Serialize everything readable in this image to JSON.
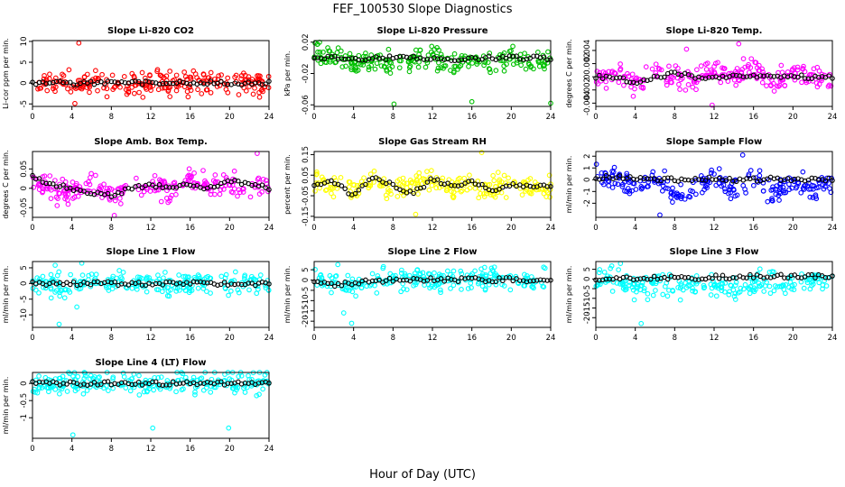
{
  "figure": {
    "title": "FEF_100530  Slope Diagnostics",
    "xlabel": "Hour of Day (UTC)"
  },
  "chart_data": [
    {
      "type": "scatter",
      "title": "Slope Li-820 CO2",
      "ylabel": "Li-cor ppm per min.",
      "xlim": [
        0,
        24
      ],
      "ylim": [
        -5.6,
        10.2
      ],
      "xticks": [
        0,
        4,
        8,
        12,
        16,
        20,
        24
      ],
      "yticks": [
        -5,
        0,
        5,
        10
      ],
      "color": "#ff0000",
      "series": [
        {
          "x": [
            0,
            2,
            4,
            6,
            8,
            10,
            12,
            14,
            16,
            18,
            20,
            22,
            24
          ],
          "y": [
            0.05,
            0.1,
            0.3,
            -0.6,
            0.2,
            -0.5,
            0.3,
            0.1,
            -0.1,
            0.0,
            0.1,
            0.1,
            0.0
          ]
        }
      ],
      "highlights": [
        {
          "x": 4.7,
          "y": 9.6
        },
        {
          "x": 4.3,
          "y": -4.9
        },
        {
          "x": 3.7,
          "y": 3.2
        },
        {
          "x": 11.2,
          "y": -3.4
        },
        {
          "x": 6.4,
          "y": 3.0
        }
      ],
      "overlay": [
        0.0,
        0.1,
        -0.1,
        0.0,
        0.0,
        0.1,
        0.0,
        0.0,
        0.0,
        0.0,
        0.0,
        0.0,
        0.0
      ]
    },
    {
      "type": "scatter",
      "title": "Slope Li-820 Pressure",
      "ylabel": "kPa per min.",
      "xlim": [
        0,
        24
      ],
      "ylim": [
        -0.062,
        0.022
      ],
      "xticks": [
        0,
        4,
        8,
        12,
        16,
        20,
        24
      ],
      "yticks": [
        0.02,
        -0.02,
        -0.06
      ],
      "color": "#00c000",
      "series": [
        {
          "x": [
            0,
            2,
            4,
            6,
            8,
            10,
            12,
            14,
            16,
            18,
            20,
            22,
            24
          ],
          "y": [
            0.005,
            0.002,
            -0.008,
            -0.005,
            -0.01,
            -0.004,
            0.002,
            -0.006,
            -0.002,
            -0.008,
            0.004,
            -0.006,
            -0.003
          ]
        }
      ],
      "highlights": [
        {
          "x": 8.1,
          "y": -0.059
        },
        {
          "x": 16.0,
          "y": -0.056
        },
        {
          "x": 24.0,
          "y": -0.058
        }
      ],
      "overlay": [
        0.0,
        0.0,
        -0.002,
        0.0,
        0.0,
        0.0,
        0.0,
        -0.002,
        0.0,
        0.0,
        0.0,
        0.0,
        0.0
      ]
    },
    {
      "type": "scatter",
      "title": "Slope Li-820 Temp.",
      "ylabel": "degrees C per min.",
      "xlim": [
        0,
        24
      ],
      "ylim": [
        -0.0045,
        0.0055
      ],
      "xticks": [
        0,
        4,
        8,
        12,
        16,
        20,
        24
      ],
      "yticks": [
        -0.004,
        -0.002,
        0.0,
        0.002,
        0.004
      ],
      "color": "#ff00ff",
      "series": [
        {
          "x": [
            0,
            2,
            4,
            6,
            8,
            10,
            12,
            14,
            16,
            18,
            20,
            22,
            24
          ],
          "y": [
            0.0,
            0.0005,
            -0.001,
            0.001,
            0.0,
            -0.0008,
            0.0012,
            0.0,
            0.0015,
            -0.001,
            0.0005,
            0.0,
            -0.0005
          ]
        }
      ],
      "highlights": [
        {
          "x": 14.5,
          "y": 0.005
        },
        {
          "x": 11.8,
          "y": -0.0043
        },
        {
          "x": 9.2,
          "y": 0.0042
        }
      ],
      "overlay": [
        0.0,
        0.0,
        -0.001,
        0.0,
        0.0005,
        0.0,
        0.0,
        0.0,
        0.0,
        0.0,
        0.0,
        0.0,
        0.0
      ]
    },
    {
      "type": "scatter",
      "title": "Slope Amb. Box Temp.",
      "ylabel": "degrees C per min.",
      "xlim": [
        0,
        24
      ],
      "ylim": [
        -0.075,
        0.095
      ],
      "xticks": [
        0,
        4,
        8,
        12,
        16,
        20,
        24
      ],
      "yticks": [
        0.05,
        0.0,
        -0.05
      ],
      "color": "#ff00ff",
      "series": [
        {
          "x": [
            0,
            2,
            4,
            6,
            8,
            10,
            12,
            14,
            16,
            18,
            20,
            22,
            24
          ],
          "y": [
            0.02,
            0.0,
            -0.01,
            0.01,
            -0.02,
            0.0,
            0.015,
            -0.01,
            0.02,
            0.0,
            0.01,
            0.0,
            0.02
          ]
        }
      ],
      "highlights": [
        {
          "x": 22.8,
          "y": 0.09
        },
        {
          "x": 8.3,
          "y": -0.07
        }
      ],
      "overlay": [
        0.03,
        0.01,
        0.0,
        -0.01,
        -0.02,
        0.0,
        0.01,
        0.0,
        0.01,
        0.0,
        0.02,
        0.01,
        0.0
      ]
    },
    {
      "type": "scatter",
      "title": "Slope Gas Stream RH",
      "ylabel": "percent per min.",
      "xlim": [
        0,
        24
      ],
      "ylim": [
        -0.155,
        0.165
      ],
      "xticks": [
        0,
        4,
        8,
        12,
        16,
        20,
        24
      ],
      "yticks": [
        -0.15,
        -0.05,
        0.05,
        0.15
      ],
      "color": "#ffff00",
      "series": [
        {
          "x": [
            0,
            2,
            4,
            6,
            8,
            10,
            12,
            14,
            16,
            18,
            20,
            22,
            24
          ],
          "y": [
            0.03,
            0.0,
            -0.02,
            0.02,
            -0.03,
            0.01,
            0.03,
            -0.01,
            0.02,
            -0.02,
            0.01,
            0.0,
            -0.01
          ]
        }
      ],
      "highlights": [
        {
          "x": 17.0,
          "y": 0.16
        },
        {
          "x": 10.3,
          "y": -0.14
        }
      ],
      "overlay": [
        0.0,
        0.02,
        -0.05,
        0.04,
        0.0,
        -0.04,
        0.03,
        0.0,
        0.02,
        -0.02,
        0.0,
        0.0,
        0.0
      ]
    },
    {
      "type": "scatter",
      "title": "Slope Sample Flow",
      "ylabel": "ml/min per min.",
      "xlim": [
        0,
        24
      ],
      "ylim": [
        -3.2,
        2.4
      ],
      "xticks": [
        0,
        4,
        8,
        12,
        16,
        20,
        24
      ],
      "yticks": [
        -2,
        -1,
        0,
        1,
        2
      ],
      "color": "#0000ff",
      "series": [
        {
          "x": [
            0,
            2,
            4,
            6,
            8,
            10,
            12,
            14,
            16,
            18,
            20,
            22,
            24
          ],
          "y": [
            0.3,
            0.2,
            -0.4,
            0.1,
            -1.2,
            -0.8,
            0.2,
            -1.0,
            0.3,
            -1.4,
            0.1,
            -1.1,
            0.2
          ]
        }
      ],
      "highlights": [
        {
          "x": 14.9,
          "y": 2.1
        },
        {
          "x": 6.5,
          "y": -3.0
        }
      ],
      "overlay": [
        0.2,
        0.2,
        0.1,
        0.0,
        0.0,
        0.1,
        0.1,
        0.0,
        0.0,
        0.1,
        0.0,
        0.0,
        0.0
      ]
    },
    {
      "type": "scatter",
      "title": "Slope Line 1 Flow",
      "ylabel": "ml/min per min.",
      "xlim": [
        0,
        24
      ],
      "ylim": [
        -14,
        7
      ],
      "xticks": [
        0,
        4,
        8,
        12,
        16,
        20,
        24
      ],
      "yticks": [
        -10,
        -5,
        0,
        5
      ],
      "color": "#00ffff",
      "series": [
        {
          "x": [
            0,
            2,
            4,
            6,
            8,
            10,
            12,
            14,
            16,
            18,
            20,
            22,
            24
          ],
          "y": [
            0.3,
            -0.5,
            -1.0,
            0.2,
            0.0,
            0.0,
            0.0,
            0.0,
            0.0,
            0.0,
            0.0,
            0.0,
            0.0
          ]
        }
      ],
      "highlights": [
        {
          "x": 2.7,
          "y": -13
        },
        {
          "x": 2.3,
          "y": 5.8
        },
        {
          "x": 5.0,
          "y": 6.5
        },
        {
          "x": 4.5,
          "y": -7.5
        }
      ],
      "overlay": [
        0.0,
        0.0,
        0.0,
        0.0,
        0.0,
        0.0,
        0.0,
        0.0,
        0.0,
        0.0,
        0.0,
        0.0,
        0.0
      ]
    },
    {
      "type": "scatter",
      "title": "Slope Line 2 Flow",
      "ylabel": "ml/min per min.",
      "xlim": [
        0,
        24
      ],
      "ylim": [
        -23,
        9
      ],
      "xticks": [
        0,
        4,
        8,
        12,
        16,
        20,
        24
      ],
      "yticks": [
        -20,
        -15,
        -10,
        -5,
        0,
        5
      ],
      "color": "#00ffff",
      "series": [
        {
          "x": [
            0,
            2,
            4,
            6,
            8,
            10,
            12,
            14,
            16,
            18,
            20,
            22,
            24
          ],
          "y": [
            1.0,
            -2.0,
            -3.0,
            0.2,
            0.0,
            0.5,
            0.3,
            0.8,
            0.5,
            0.2,
            1.0,
            0.6,
            0.4
          ]
        }
      ],
      "highlights": [
        {
          "x": 3.8,
          "y": -21
        },
        {
          "x": 3.0,
          "y": -16
        },
        {
          "x": 2.4,
          "y": 7.5
        }
      ],
      "overlay": [
        -1.0,
        -2.5,
        -1.5,
        -0.5,
        0.0,
        0.0,
        0.5,
        0.0,
        0.5,
        0.0,
        0.5,
        0.0,
        0.0
      ]
    },
    {
      "type": "scatter",
      "title": "Slope Line 3 Flow",
      "ylabel": "ml/min per min.",
      "xlim": [
        0,
        24
      ],
      "ylim": [
        -25,
        9
      ],
      "xticks": [
        0,
        4,
        8,
        12,
        16,
        20,
        24
      ],
      "yticks": [
        -20,
        -15,
        -10,
        -5,
        0,
        5
      ],
      "color": "#00ffff",
      "series": [
        {
          "x": [
            0,
            2,
            4,
            6,
            8,
            10,
            12,
            14,
            16,
            18,
            20,
            22,
            24
          ],
          "y": [
            0.5,
            -1.0,
            -5.0,
            -3.0,
            -4.0,
            -3.5,
            -3.0,
            -2.8,
            -2.5,
            -2.3,
            -2.0,
            -1.5,
            -1.0
          ]
        }
      ],
      "highlights": [
        {
          "x": 4.6,
          "y": -23
        },
        {
          "x": 2.5,
          "y": 8.0
        },
        {
          "x": 6.8,
          "y": -8.0
        }
      ],
      "overlay": [
        0.0,
        0.5,
        0.5,
        0.5,
        0.5,
        0.5,
        1.0,
        1.0,
        1.5,
        1.5,
        1.5,
        1.5,
        1.5
      ]
    },
    {
      "type": "scatter",
      "title": "Slope Line 4 (LT) Flow",
      "ylabel": "ml/min per min.",
      "xlim": [
        0,
        24
      ],
      "ylim": [
        -1.6,
        0.32
      ],
      "xticks": [
        0,
        4,
        8,
        12,
        16,
        20,
        24
      ],
      "yticks": [
        0.0,
        -0.5,
        -1.0
      ],
      "color": "#00ffff",
      "series": [
        {
          "x": [
            0,
            2,
            4,
            6,
            8,
            10,
            12,
            14,
            16,
            18,
            20,
            22,
            24
          ],
          "y": [
            0.02,
            0.0,
            0.03,
            0.0,
            0.01,
            0.02,
            0.0,
            0.01,
            0.0,
            0.02,
            0.01,
            0.0,
            0.02
          ]
        }
      ],
      "highlights": [
        {
          "x": 4.1,
          "y": -1.5
        },
        {
          "x": 12.2,
          "y": -1.3
        },
        {
          "x": 19.9,
          "y": -1.3
        },
        {
          "x": 4.6,
          "y": 0.2
        }
      ],
      "overlay": [
        0.0,
        0.0,
        0.0,
        0.0,
        0.0,
        0.0,
        0.0,
        0.0,
        0.0,
        0.0,
        0.0,
        0.0,
        0.0
      ]
    }
  ]
}
